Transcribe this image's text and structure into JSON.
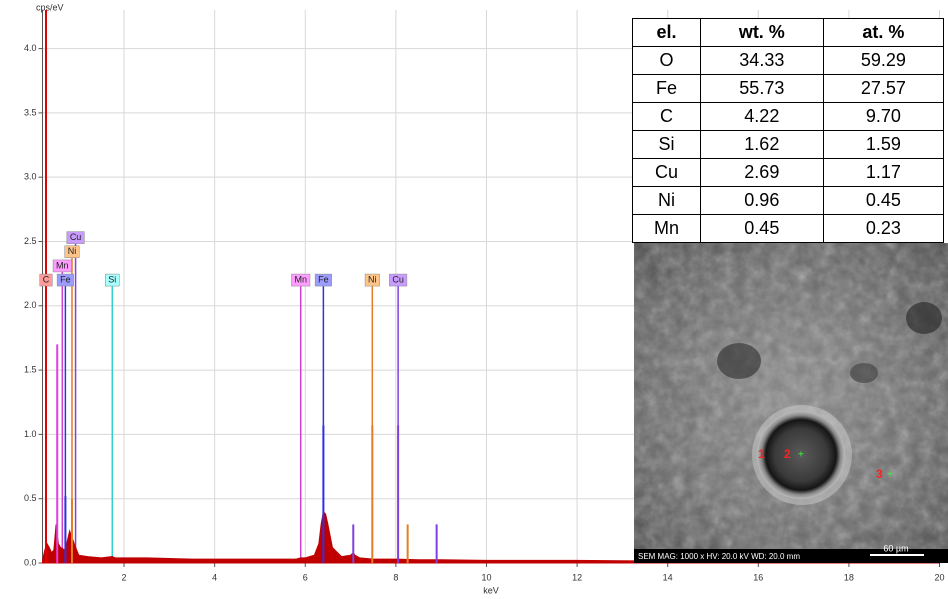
{
  "chart_data": {
    "type": "spectrum",
    "ylabel": "cps/eV",
    "xlabel": "keV",
    "xlim": [
      0.2,
      20
    ],
    "ylim": [
      0,
      4.3
    ],
    "xticks": [
      2,
      4,
      6,
      8,
      10,
      12,
      14,
      16,
      18,
      20
    ],
    "yticks": [
      {
        "value": 0,
        "label": "0.0"
      },
      0.5,
      {
        "value": 1,
        "label": "1.0"
      },
      1.5,
      {
        "value": 2,
        "label": "2.0"
      },
      2.5,
      {
        "value": 3,
        "label": "3.0"
      },
      3.5,
      {
        "value": 4,
        "label": "4.0"
      }
    ],
    "grid": true,
    "color": "#c00000",
    "x": [
      0.2,
      0.25,
      0.3,
      0.35,
      0.4,
      0.45,
      0.5,
      0.55,
      0.6,
      0.7,
      0.8,
      0.9,
      1.0,
      1.2,
      1.5,
      1.74,
      1.8,
      2,
      2.5,
      3,
      3.5,
      4,
      4.5,
      5,
      5.5,
      5.8,
      5.9,
      6.0,
      6.2,
      6.3,
      6.35,
      6.4,
      6.45,
      6.5,
      6.6,
      6.8,
      7.0,
      7.06,
      7.1,
      7.2,
      7.5,
      8,
      8.5,
      9,
      10,
      12,
      14,
      16,
      18,
      20
    ],
    "values": [
      0.02,
      0.1,
      0.15,
      0.12,
      0.08,
      0.1,
      0.3,
      0.15,
      0.12,
      0.1,
      0.25,
      0.15,
      0.06,
      0.05,
      0.04,
      0.05,
      0.04,
      0.04,
      0.04,
      0.035,
      0.03,
      0.03,
      0.03,
      0.03,
      0.03,
      0.03,
      0.04,
      0.04,
      0.06,
      0.15,
      0.3,
      0.4,
      0.38,
      0.3,
      0.12,
      0.05,
      0.06,
      0.08,
      0.06,
      0.04,
      0.03,
      0.03,
      0.025,
      0.025,
      0.02,
      0.02,
      0.015,
      0.015,
      0.01,
      0.01
    ],
    "peaks": [
      {
        "energy": 0.277,
        "height": 4.3,
        "color": "#e00000"
      },
      {
        "energy": 0.525,
        "height": 1.7,
        "color": "#e040e0"
      },
      {
        "energy": 0.705,
        "height": 0.52,
        "color": "#3030e0"
      },
      {
        "energy": 0.851,
        "height": 0.5,
        "color": "#e08020"
      },
      {
        "energy": 6.4,
        "height": 1.07,
        "color": "#3030e0"
      },
      {
        "energy": 7.06,
        "height": 0.3,
        "color": "#8040e0"
      },
      {
        "energy": 7.48,
        "height": 1.07,
        "color": "#e08020"
      },
      {
        "energy": 8.05,
        "height": 1.07,
        "color": "#8040e0"
      },
      {
        "energy": 8.26,
        "height": 0.3,
        "color": "#e08020"
      },
      {
        "energy": 8.9,
        "height": 0.3,
        "color": "#8040e0"
      }
    ],
    "markers": [
      {
        "label": "C",
        "energy": 0.277,
        "level": 2.2,
        "color": "#e03030",
        "background": "#ff9a9a"
      },
      {
        "label": "Fe",
        "energy": 0.705,
        "level": 2.2,
        "color": "#3030e0",
        "background": "#9c9cff"
      },
      {
        "label": "Mn",
        "energy": 0.637,
        "level": 2.31,
        "color": "#d040d0",
        "background": "#ff9cff"
      },
      {
        "label": "Ni",
        "energy": 0.851,
        "level": 2.42,
        "color": "#e08020",
        "background": "#ffc488"
      },
      {
        "label": "Cu",
        "energy": 0.93,
        "level": 2.53,
        "color": "#8040e0",
        "background": "#c89cff"
      },
      {
        "label": "Si",
        "energy": 1.74,
        "level": 2.2,
        "color": "#30d0d0",
        "background": "#a8ffff"
      },
      {
        "label": "Mn",
        "energy": 5.9,
        "level": 2.2,
        "color": "#d040d0",
        "background": "#ff9cff"
      },
      {
        "label": "Fe",
        "energy": 6.4,
        "level": 2.2,
        "color": "#3030e0",
        "background": "#9c9cff"
      },
      {
        "label": "Ni",
        "energy": 7.48,
        "level": 2.2,
        "color": "#e08020",
        "background": "#ffc488"
      },
      {
        "label": "Cu",
        "energy": 8.05,
        "level": 2.2,
        "color": "#8040e0",
        "background": "#c89cff"
      }
    ]
  },
  "table": {
    "header": [
      "el.",
      "wt. %",
      "at. %"
    ],
    "rows": [
      [
        "O",
        "34.33",
        "59.29"
      ],
      [
        "Fe",
        "55.73",
        "27.57"
      ],
      [
        "C",
        "4.22",
        "9.70"
      ],
      [
        "Si",
        "1.62",
        "1.59"
      ],
      [
        "Cu",
        "2.69",
        "1.17"
      ],
      [
        "Ni",
        "0.96",
        "0.45"
      ],
      [
        "Mn",
        "0.45",
        "0.23"
      ]
    ]
  },
  "image": {
    "caption": "SEM  MAG: 1000 x  HV: 20.0 kV  WD: 20.0 mm",
    "scale": "60 µm",
    "points": [
      "1",
      "2",
      "3"
    ]
  }
}
